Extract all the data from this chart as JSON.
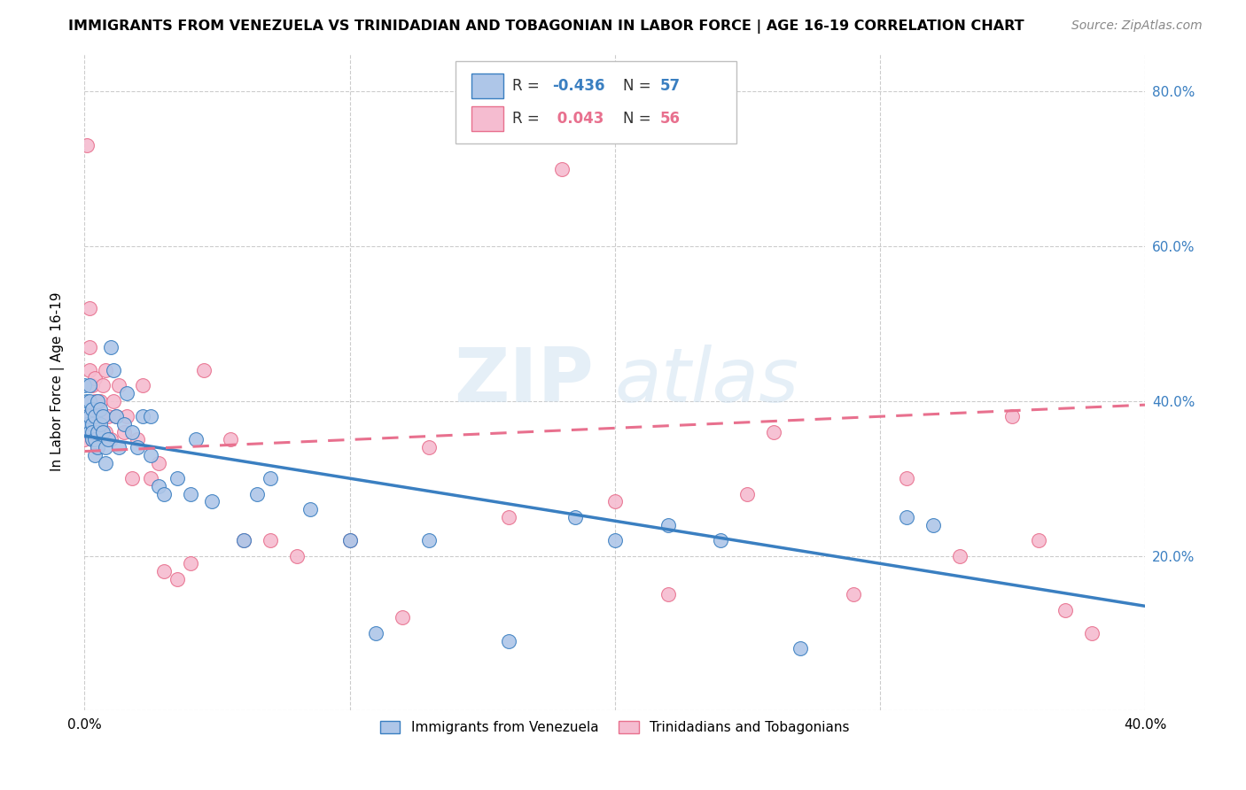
{
  "title": "IMMIGRANTS FROM VENEZUELA VS TRINIDADIAN AND TOBAGONIAN IN LABOR FORCE | AGE 16-19 CORRELATION CHART",
  "source": "Source: ZipAtlas.com",
  "ylabel": "In Labor Force | Age 16-19",
  "xlim": [
    0.0,
    0.4
  ],
  "ylim": [
    0.0,
    0.85
  ],
  "blue_color": "#aec6e8",
  "pink_color": "#f5bcd0",
  "blue_line_color": "#3a7fc1",
  "pink_line_color": "#e8708e",
  "legend_R_blue": "-0.436",
  "legend_N_blue": "57",
  "legend_R_pink": "0.043",
  "legend_N_pink": "56",
  "watermark_zip": "ZIP",
  "watermark_atlas": "atlas",
  "grid_color": "#cccccc",
  "background_color": "#ffffff",
  "blue_scatter_x": [
    0.0,
    0.001,
    0.001,
    0.001,
    0.002,
    0.002,
    0.002,
    0.002,
    0.003,
    0.003,
    0.003,
    0.003,
    0.004,
    0.004,
    0.004,
    0.005,
    0.005,
    0.005,
    0.006,
    0.006,
    0.007,
    0.007,
    0.008,
    0.008,
    0.009,
    0.01,
    0.011,
    0.012,
    0.013,
    0.015,
    0.016,
    0.018,
    0.02,
    0.022,
    0.025,
    0.025,
    0.028,
    0.03,
    0.035,
    0.04,
    0.042,
    0.048,
    0.06,
    0.065,
    0.07,
    0.085,
    0.1,
    0.11,
    0.13,
    0.16,
    0.185,
    0.2,
    0.22,
    0.24,
    0.27,
    0.31,
    0.32
  ],
  "blue_scatter_y": [
    0.42,
    0.4,
    0.38,
    0.37,
    0.42,
    0.38,
    0.36,
    0.4,
    0.37,
    0.35,
    0.39,
    0.36,
    0.38,
    0.33,
    0.35,
    0.4,
    0.36,
    0.34,
    0.37,
    0.39,
    0.36,
    0.38,
    0.34,
    0.32,
    0.35,
    0.47,
    0.44,
    0.38,
    0.34,
    0.37,
    0.41,
    0.36,
    0.34,
    0.38,
    0.38,
    0.33,
    0.29,
    0.28,
    0.3,
    0.28,
    0.35,
    0.27,
    0.22,
    0.28,
    0.3,
    0.26,
    0.22,
    0.1,
    0.22,
    0.09,
    0.25,
    0.22,
    0.24,
    0.22,
    0.08,
    0.25,
    0.24
  ],
  "pink_scatter_x": [
    0.0,
    0.001,
    0.001,
    0.002,
    0.002,
    0.002,
    0.003,
    0.003,
    0.003,
    0.004,
    0.004,
    0.005,
    0.005,
    0.005,
    0.006,
    0.006,
    0.007,
    0.007,
    0.008,
    0.008,
    0.009,
    0.01,
    0.011,
    0.012,
    0.013,
    0.015,
    0.016,
    0.018,
    0.02,
    0.022,
    0.025,
    0.028,
    0.03,
    0.035,
    0.04,
    0.045,
    0.055,
    0.06,
    0.07,
    0.08,
    0.1,
    0.12,
    0.13,
    0.16,
    0.18,
    0.2,
    0.22,
    0.25,
    0.26,
    0.29,
    0.31,
    0.33,
    0.35,
    0.36,
    0.37,
    0.38
  ],
  "pink_scatter_y": [
    0.35,
    0.73,
    0.38,
    0.52,
    0.47,
    0.44,
    0.42,
    0.38,
    0.35,
    0.43,
    0.4,
    0.36,
    0.34,
    0.38,
    0.36,
    0.4,
    0.42,
    0.38,
    0.36,
    0.44,
    0.38,
    0.35,
    0.4,
    0.38,
    0.42,
    0.36,
    0.38,
    0.3,
    0.35,
    0.42,
    0.3,
    0.32,
    0.18,
    0.17,
    0.19,
    0.44,
    0.35,
    0.22,
    0.22,
    0.2,
    0.22,
    0.12,
    0.34,
    0.25,
    0.7,
    0.27,
    0.15,
    0.28,
    0.36,
    0.15,
    0.3,
    0.2,
    0.38,
    0.22,
    0.13,
    0.1
  ],
  "blue_trend_x0": 0.0,
  "blue_trend_y0": 0.355,
  "blue_trend_x1": 0.4,
  "blue_trend_y1": 0.135,
  "pink_trend_x0": 0.0,
  "pink_trend_y0": 0.335,
  "pink_trend_x1": 0.4,
  "pink_trend_y1": 0.395
}
